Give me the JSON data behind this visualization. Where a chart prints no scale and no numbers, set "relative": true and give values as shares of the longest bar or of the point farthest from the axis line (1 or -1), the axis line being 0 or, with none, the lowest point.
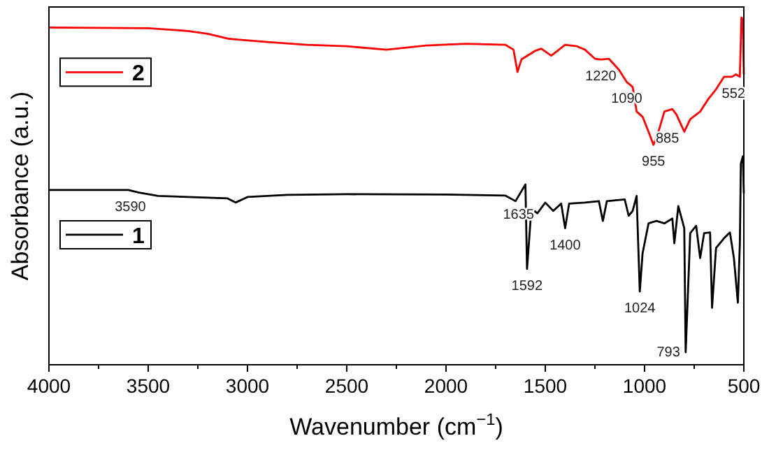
{
  "chart_data": {
    "type": "line",
    "relative": true,
    "xlabel": "Wavenumber (cm$^{−1}$)",
    "ylabel": "Absorbance (a.u.)",
    "xlim": [
      4000,
      500
    ],
    "xticks": [
      4000,
      {
        "value": 3750,
        "label": null
      },
      3500,
      {
        "value": 3250,
        "label": null
      },
      3000,
      {
        "value": 2750,
        "label": null
      },
      2500,
      {
        "value": 2250,
        "label": null
      },
      2000,
      {
        "value": 1750,
        "label": null
      },
      1500,
      {
        "value": 1250,
        "label": null
      },
      1000,
      {
        "value": 750,
        "label": null
      },
      500
    ],
    "legend": "left",
    "grid": false,
    "line_style": "solid",
    "series": [
      {
        "name": "2",
        "color": "#ff0000",
        "x": [
          4000,
          3500,
          3300,
          3200,
          3100,
          3050,
          2900,
          2700,
          2500,
          2300,
          2100,
          1900,
          1700,
          1660,
          1640,
          1620,
          1550,
          1520,
          1470,
          1400,
          1340,
          1300,
          1250,
          1220,
          1180,
          1130,
          1090,
          1060,
          1040,
          1010,
          980,
          955,
          930,
          900,
          860,
          840,
          800,
          770,
          720,
          680,
          640,
          600,
          560,
          540,
          520,
          512,
          505,
          500
        ],
        "values": [
          0.971,
          0.969,
          0.961,
          0.953,
          0.939,
          0.936,
          0.929,
          0.921,
          0.917,
          0.907,
          0.919,
          0.924,
          0.921,
          0.907,
          0.843,
          0.879,
          0.904,
          0.91,
          0.89,
          0.921,
          0.917,
          0.907,
          0.881,
          0.879,
          0.881,
          0.85,
          0.814,
          0.8,
          0.729,
          0.714,
          0.671,
          0.633,
          0.671,
          0.729,
          0.736,
          0.721,
          0.671,
          0.707,
          0.729,
          0.764,
          0.793,
          0.829,
          0.829,
          0.836,
          0.829,
          1.0,
          0.993,
          0.836
        ]
      },
      {
        "name": "1",
        "color": "#000000",
        "x": [
          4000,
          3600,
          3550,
          3450,
          3300,
          3100,
          3060,
          3000,
          2800,
          2500,
          2000,
          1700,
          1650,
          1600,
          1592,
          1570,
          1540,
          1500,
          1460,
          1420,
          1400,
          1380,
          1300,
          1230,
          1210,
          1190,
          1100,
          1080,
          1060,
          1040,
          1024,
          1010,
          980,
          940,
          900,
          860,
          850,
          830,
          800,
          793,
          770,
          740,
          720,
          700,
          670,
          660,
          640,
          600,
          570,
          550,
          530,
          520,
          515,
          505,
          500
        ],
        "values": [
          0.503,
          0.503,
          0.496,
          0.486,
          0.483,
          0.479,
          0.467,
          0.483,
          0.489,
          0.491,
          0.49,
          0.487,
          0.471,
          0.519,
          0.276,
          0.45,
          0.436,
          0.467,
          0.443,
          0.464,
          0.393,
          0.464,
          0.467,
          0.471,
          0.414,
          0.471,
          0.476,
          0.429,
          0.443,
          0.486,
          0.211,
          0.321,
          0.407,
          0.414,
          0.407,
          0.421,
          0.35,
          0.457,
          0.393,
          0.036,
          0.379,
          0.4,
          0.307,
          0.379,
          0.381,
          0.164,
          0.336,
          0.364,
          0.381,
          0.307,
          0.179,
          0.35,
          0.579,
          0.6,
          0.493
        ]
      }
    ],
    "annotations": [
      {
        "text": "1220",
        "x": 1220,
        "y": 0.879
      },
      {
        "text": "1090",
        "x": 1090,
        "y": 0.814
      },
      {
        "text": "955",
        "x": 955,
        "y": 0.633
      },
      {
        "text": "885",
        "x": 885,
        "y": 0.7
      },
      {
        "text": "552",
        "x": 552,
        "y": 0.829
      },
      {
        "text": "3590",
        "x": 3590,
        "y": 0.503
      },
      {
        "text": "1635",
        "x": 1635,
        "y": 0.48
      },
      {
        "text": "1592",
        "x": 1592,
        "y": 0.276
      },
      {
        "text": "1400",
        "x": 1400,
        "y": 0.393
      },
      {
        "text": "1024",
        "x": 1024,
        "y": 0.211
      },
      {
        "text": "793",
        "x": 793,
        "y": 0.036
      }
    ]
  }
}
